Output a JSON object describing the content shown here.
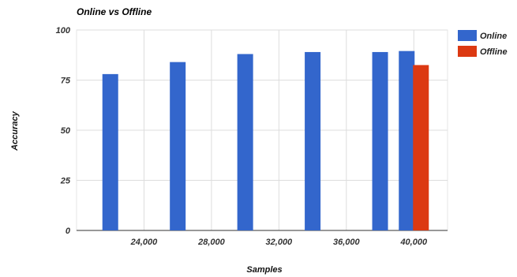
{
  "chart_data": {
    "type": "bar",
    "title": "Online vs Offline",
    "xlabel": "Samples",
    "ylabel": "Accuracy",
    "ylim": [
      0,
      100
    ],
    "yticks": [
      0,
      25,
      50,
      75,
      100
    ],
    "xticks": [
      "24,000",
      "28,000",
      "32,000",
      "36,000",
      "40,000"
    ],
    "x_range": [
      20000,
      42000
    ],
    "grid": true,
    "legend_position": "right",
    "series": [
      {
        "name": "Online",
        "color": "#3366cc",
        "x": [
          22000,
          26000,
          30000,
          34000,
          38000,
          40000
        ],
        "values": [
          78,
          84,
          88,
          89,
          89,
          89.5
        ]
      },
      {
        "name": "Offline",
        "color": "#dc3912",
        "x": [
          40000
        ],
        "values": [
          82.5
        ]
      }
    ]
  }
}
